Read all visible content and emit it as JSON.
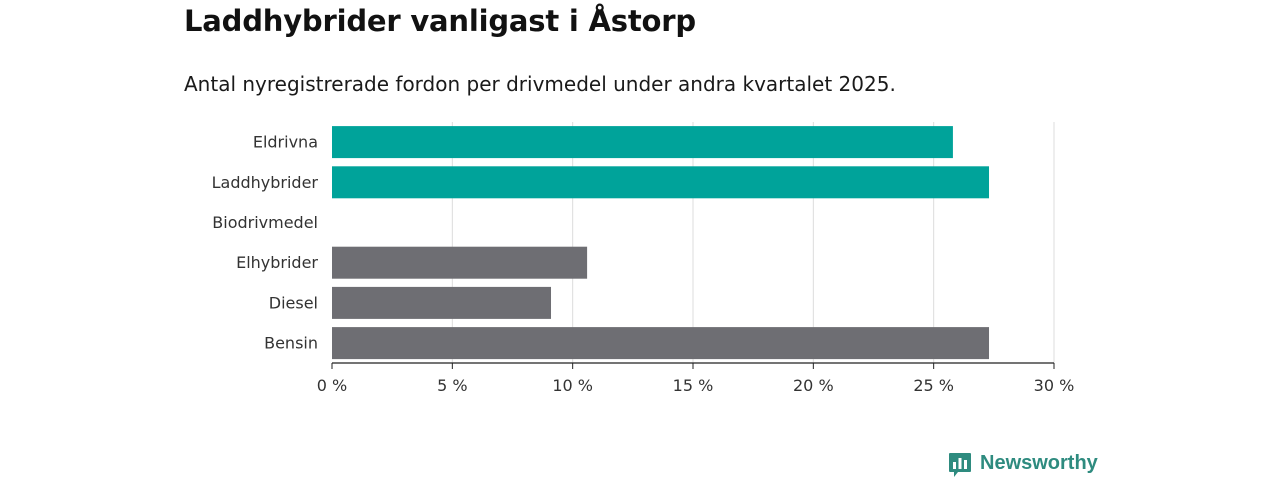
{
  "title": "Laddhybrider vanligast i Åstorp",
  "subtitle": "Antal nyregistrerade fordon per drivmedel under andra kvartalet 2025.",
  "brand": {
    "name": "Newsworthy",
    "icon": "newsworthy-logo-icon"
  },
  "chart_data": {
    "type": "bar",
    "orientation": "horizontal",
    "categories": [
      "Eldrivna",
      "Laddhybrider",
      "Biodrivmedel",
      "Elhybrider",
      "Diesel",
      "Bensin"
    ],
    "values": [
      25.8,
      27.3,
      0,
      10.6,
      9.1,
      27.3
    ],
    "colors": [
      "#00a39a",
      "#00a39a",
      "#00a39a",
      "#6e6e73",
      "#6e6e73",
      "#6e6e73"
    ],
    "xlim": [
      0,
      30
    ],
    "xticks": [
      0,
      5,
      10,
      15,
      20,
      25,
      30
    ],
    "xtick_labels": [
      "0 %",
      "5 %",
      "10 %",
      "15 %",
      "20 %",
      "25 %",
      "30 %"
    ],
    "xlabel": "",
    "ylabel": "",
    "grid": "vertical"
  }
}
